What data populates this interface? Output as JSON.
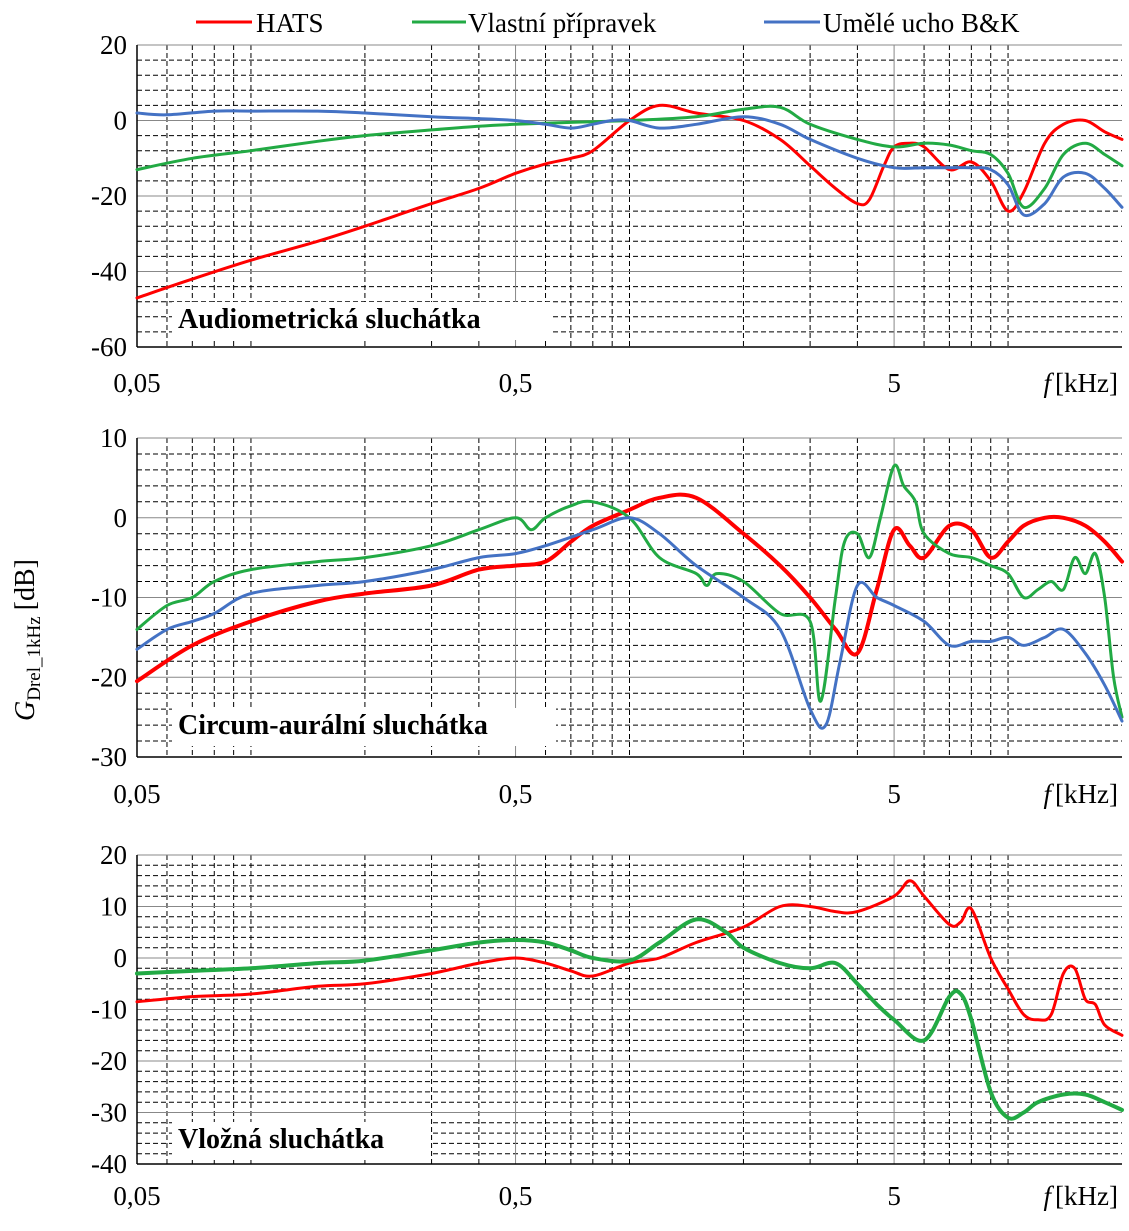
{
  "legend": [
    {
      "label": "HATS",
      "color": "#ff0000"
    },
    {
      "label": "Vlastní přípravek",
      "color": "#22aa44"
    },
    {
      "label": "Umělé ucho B&K",
      "color": "#4472c4"
    }
  ],
  "ylabel_main": "G",
  "ylabel_sub": "Drel_1kHz",
  "ylabel_unit": "[dB]",
  "xunit_f": "f",
  "xunit_text": "[kHz]",
  "chart_data": [
    {
      "type": "line",
      "title": "Audiometrická sluchátka",
      "xscale": "log",
      "xlim": [
        0.05,
        20
      ],
      "ylim": [
        -60,
        20
      ],
      "yticks": [
        20,
        0,
        -20,
        -40,
        -60
      ],
      "xtick_labels": [
        "0,05",
        "0,5",
        "5"
      ],
      "xticks": [
        0.05,
        0.5,
        5
      ],
      "xlabel": "f [kHz]",
      "grid": true,
      "series": [
        {
          "name": "HATS",
          "color": "#ff0000",
          "width": 3,
          "x": [
            0.05,
            0.07,
            0.1,
            0.15,
            0.2,
            0.3,
            0.4,
            0.5,
            0.6,
            0.7,
            0.8,
            1.0,
            1.2,
            1.5,
            2.0,
            2.5,
            3.0,
            3.5,
            4.0,
            4.3,
            4.7,
            5.0,
            5.5,
            6.0,
            7.0,
            8.0,
            9.0,
            10.0,
            11.0,
            12.5,
            14.0,
            16.0,
            18.0,
            20.0
          ],
          "y": [
            -47,
            -42,
            -37,
            -32,
            -28,
            -22,
            -18,
            -14,
            -11.5,
            -10,
            -8,
            0,
            4,
            2,
            0,
            -5,
            -12,
            -18,
            -22,
            -21,
            -12,
            -7,
            -6,
            -7,
            -13,
            -11,
            -16,
            -24,
            -19,
            -6,
            -1,
            0,
            -3,
            -5
          ]
        },
        {
          "name": "Vlastní přípravek",
          "color": "#22aa44",
          "width": 3,
          "x": [
            0.05,
            0.07,
            0.1,
            0.15,
            0.2,
            0.3,
            0.4,
            0.5,
            0.7,
            1.0,
            1.5,
            2.0,
            2.5,
            3.0,
            4.0,
            5.0,
            6.0,
            7.0,
            8.0,
            9.0,
            10.0,
            11.0,
            12.5,
            14.0,
            16.0,
            18.0,
            20.0
          ],
          "y": [
            -13,
            -10,
            -8,
            -5.5,
            -4,
            -2.5,
            -1.5,
            -1,
            -0.5,
            0,
            1,
            3,
            3.5,
            -1,
            -5,
            -7,
            -6,
            -6.5,
            -8,
            -9,
            -14,
            -23,
            -18,
            -9,
            -6,
            -9,
            -12
          ]
        },
        {
          "name": "Umělé ucho B&K",
          "color": "#4472c4",
          "width": 3,
          "x": [
            0.05,
            0.06,
            0.08,
            0.1,
            0.15,
            0.2,
            0.3,
            0.4,
            0.5,
            0.6,
            0.7,
            0.8,
            0.9,
            1.0,
            1.2,
            1.5,
            2.0,
            2.5,
            3.0,
            4.0,
            5.0,
            6.0,
            7.0,
            8.0,
            9.0,
            10.0,
            11.0,
            12.5,
            14.0,
            16.0,
            18.0,
            20.0
          ],
          "y": [
            2,
            1.5,
            2.5,
            2.5,
            2.5,
            2,
            1,
            0.5,
            0,
            -1,
            -2,
            -1,
            0,
            0,
            -2,
            -1,
            1,
            -1,
            -5,
            -10,
            -12.5,
            -12.5,
            -12.5,
            -12.5,
            -13,
            -17,
            -25,
            -22,
            -15,
            -14,
            -18,
            -23
          ]
        }
      ]
    },
    {
      "type": "line",
      "title": "Circum-aurální sluchátka",
      "xscale": "log",
      "xlim": [
        0.05,
        20
      ],
      "ylim": [
        -30,
        10
      ],
      "yticks": [
        10,
        0,
        -10,
        -20,
        -30
      ],
      "xtick_labels": [
        "0,05",
        "0,5",
        "5"
      ],
      "xticks": [
        0.05,
        0.5,
        5
      ],
      "xlabel": "f [kHz]",
      "grid": true,
      "series": [
        {
          "name": "HATS",
          "color": "#ff0000",
          "width": 4,
          "x": [
            0.05,
            0.07,
            0.1,
            0.15,
            0.2,
            0.3,
            0.4,
            0.5,
            0.6,
            0.7,
            0.8,
            1.0,
            1.2,
            1.5,
            2.0,
            2.5,
            3.0,
            3.5,
            4.0,
            4.5,
            5.0,
            5.5,
            6.0,
            7.0,
            8.0,
            9.0,
            10.0,
            11.0,
            12.5,
            14.0,
            16.0,
            18.0,
            20.0
          ],
          "y": [
            -20.5,
            -16,
            -13,
            -10.5,
            -9.5,
            -8.5,
            -6.5,
            -6,
            -5.5,
            -3,
            -1,
            1,
            2.5,
            2.5,
            -2,
            -6,
            -10,
            -14,
            -17,
            -9,
            -1.5,
            -3.5,
            -5,
            -1,
            -1.5,
            -5,
            -3,
            -1,
            0,
            0,
            -1,
            -3,
            -5.5
          ]
        },
        {
          "name": "Vlastní přípravek",
          "color": "#22aa44",
          "width": 3,
          "x": [
            0.05,
            0.06,
            0.07,
            0.08,
            0.1,
            0.15,
            0.2,
            0.3,
            0.4,
            0.5,
            0.55,
            0.6,
            0.7,
            0.8,
            1.0,
            1.2,
            1.5,
            1.6,
            1.7,
            2.0,
            2.5,
            3.0,
            3.2,
            3.5,
            3.7,
            4.0,
            4.3,
            4.6,
            5.0,
            5.3,
            5.7,
            6.0,
            7.0,
            8.0,
            9.0,
            10.0,
            11.0,
            12.0,
            13.0,
            14.0,
            15.0,
            16.0,
            17.0,
            18.0,
            19.0,
            20.0
          ],
          "y": [
            -14,
            -11,
            -10,
            -8,
            -6.5,
            -5.5,
            -5,
            -3.5,
            -1.5,
            0,
            -1.5,
            0,
            1.5,
            2,
            0,
            -5,
            -7,
            -8.5,
            -7,
            -8,
            -12,
            -13,
            -23,
            -10,
            -3,
            -2,
            -5,
            0,
            6.5,
            4,
            2,
            -2,
            -4.5,
            -5,
            -6,
            -7,
            -10,
            -9,
            -8,
            -9,
            -5,
            -7,
            -4.5,
            -10,
            -20,
            -25
          ]
        },
        {
          "name": "Umělé ucho B&K",
          "color": "#4472c4",
          "width": 3,
          "x": [
            0.05,
            0.06,
            0.07,
            0.08,
            0.1,
            0.15,
            0.2,
            0.3,
            0.4,
            0.5,
            0.6,
            0.8,
            1.0,
            1.2,
            1.5,
            2.0,
            2.5,
            3.0,
            3.3,
            3.6,
            4.0,
            4.5,
            5.0,
            6.0,
            7.0,
            8.0,
            9.0,
            10.0,
            11.0,
            12.5,
            14.0,
            16.0,
            18.0,
            20.0
          ],
          "y": [
            -16.5,
            -14,
            -13,
            -12,
            -9.5,
            -8.5,
            -8,
            -6.5,
            -5,
            -4.5,
            -3.5,
            -1.5,
            0,
            -2,
            -6,
            -10,
            -14,
            -24,
            -26,
            -18,
            -8.5,
            -10,
            -11,
            -13,
            -16,
            -15.5,
            -15.5,
            -15,
            -16,
            -15,
            -14,
            -17,
            -21,
            -25.5
          ]
        }
      ]
    },
    {
      "type": "line",
      "title": "Vložná sluchátka",
      "xscale": "log",
      "xlim": [
        0.05,
        20
      ],
      "ylim": [
        -40,
        20
      ],
      "yticks": [
        20,
        10,
        0,
        -10,
        -20,
        -30,
        -40
      ],
      "xtick_labels": [
        "0,05",
        "0,5",
        "5"
      ],
      "xticks": [
        0.05,
        0.5,
        5
      ],
      "xlabel": "f [kHz]",
      "grid": true,
      "series": [
        {
          "name": "HATS",
          "color": "#ff0000",
          "width": 3,
          "x": [
            0.05,
            0.07,
            0.1,
            0.15,
            0.2,
            0.3,
            0.4,
            0.5,
            0.6,
            0.7,
            0.8,
            1.0,
            1.2,
            1.5,
            2.0,
            2.5,
            3.0,
            3.5,
            4.0,
            5.0,
            5.5,
            6.0,
            7.0,
            7.5,
            8.0,
            9.0,
            10.0,
            11.0,
            12.0,
            13.0,
            14.0,
            15.0,
            16.0,
            17.0,
            18.0,
            20.0
          ],
          "y": [
            -8.5,
            -7.5,
            -7,
            -5.5,
            -5,
            -3,
            -1,
            0,
            -1,
            -2.5,
            -3.5,
            -1,
            0,
            3,
            6,
            10,
            10,
            9,
            9,
            12,
            15,
            12,
            6.5,
            7,
            9.5,
            0,
            -6,
            -11,
            -12,
            -11,
            -3,
            -2,
            -8,
            -9,
            -13,
            -15
          ]
        },
        {
          "name": "Vlastní přípravek",
          "color": "#22aa44",
          "width": 4,
          "x": [
            0.05,
            0.07,
            0.1,
            0.15,
            0.2,
            0.3,
            0.4,
            0.5,
            0.6,
            0.7,
            0.8,
            1.0,
            1.2,
            1.5,
            1.8,
            2.0,
            2.5,
            3.0,
            3.5,
            4.0,
            4.5,
            5.0,
            6.0,
            7.0,
            7.5,
            8.0,
            9.0,
            10.0,
            11.0,
            12.0,
            14.0,
            16.0,
            18.0,
            20.0
          ],
          "y": [
            -3,
            -2.5,
            -2,
            -1,
            -0.5,
            1.5,
            3,
            3.5,
            3,
            1.5,
            0,
            -0.5,
            3,
            7.5,
            5,
            2,
            -1,
            -2,
            -1,
            -5,
            -9,
            -12,
            -16,
            -7.5,
            -7,
            -12,
            -26,
            -31,
            -30,
            -28,
            -26.5,
            -26.5,
            -28,
            -29.5
          ]
        }
      ]
    }
  ]
}
